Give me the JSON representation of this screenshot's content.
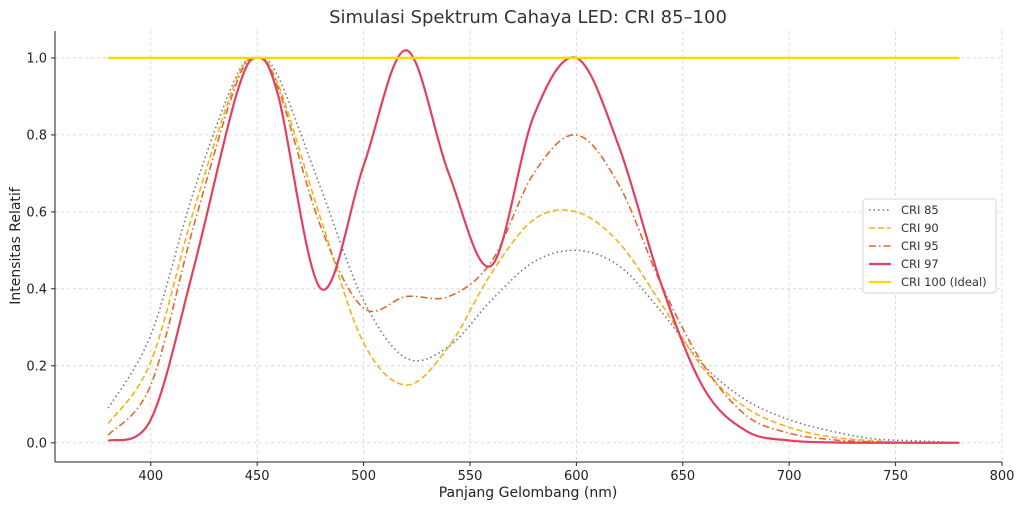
{
  "chart_data": {
    "type": "line",
    "title": "Simulasi Spektrum Cahaya LED: CRI 85–100",
    "xlabel": "Panjang Gelombang (nm)",
    "ylabel": "Intensitas Relatif",
    "xlim": [
      355,
      800
    ],
    "ylim": [
      -0.05,
      1.07
    ],
    "xticks": [
      400,
      450,
      500,
      550,
      600,
      650,
      700,
      750,
      800
    ],
    "yticks": [
      0.0,
      0.2,
      0.4,
      0.6,
      0.8,
      1.0
    ],
    "xtick_labels": [
      "400",
      "450",
      "500",
      "550",
      "600",
      "650",
      "700",
      "750",
      "800"
    ],
    "ytick_labels": [
      "0.0",
      "0.2",
      "0.4",
      "0.6",
      "0.8",
      "1.0"
    ],
    "grid": true,
    "legend_position": "right",
    "x": [
      380,
      400,
      420,
      440,
      450,
      460,
      480,
      500,
      520,
      540,
      560,
      580,
      600,
      620,
      640,
      660,
      680,
      700,
      720,
      740,
      760,
      780
    ],
    "series": [
      {
        "name": "CRI 85",
        "color": "#777777",
        "style": "dotted",
        "values": [
          0.09,
          0.28,
          0.65,
          0.95,
          1.0,
          0.95,
          0.66,
          0.37,
          0.22,
          0.25,
          0.37,
          0.47,
          0.5,
          0.46,
          0.34,
          0.2,
          0.11,
          0.06,
          0.03,
          0.01,
          0.005,
          0.0
        ]
      },
      {
        "name": "CRI 90",
        "color": "#f2b21a",
        "style": "dashed",
        "values": [
          0.05,
          0.21,
          0.6,
          0.94,
          1.0,
          0.93,
          0.58,
          0.26,
          0.15,
          0.25,
          0.44,
          0.58,
          0.6,
          0.52,
          0.36,
          0.19,
          0.09,
          0.04,
          0.015,
          0.005,
          0.0,
          0.0
        ]
      },
      {
        "name": "CRI 95",
        "color": "#e06a2e",
        "style": "dashdot",
        "values": [
          0.02,
          0.15,
          0.56,
          0.93,
          1.0,
          0.92,
          0.56,
          0.35,
          0.38,
          0.38,
          0.47,
          0.7,
          0.8,
          0.67,
          0.41,
          0.2,
          0.07,
          0.025,
          0.008,
          0.002,
          0.0,
          0.0
        ]
      },
      {
        "name": "CRI 97",
        "color": "#e3405f",
        "style": "solid",
        "values": [
          0.005,
          0.06,
          0.45,
          0.9,
          1.0,
          0.9,
          0.4,
          0.72,
          1.02,
          0.7,
          0.46,
          0.85,
          1.0,
          0.77,
          0.41,
          0.14,
          0.03,
          0.006,
          0.001,
          0.0,
          0.0,
          0.0
        ]
      },
      {
        "name": "CRI 100 (Ideal)",
        "color": "#ffd700",
        "style": "solid",
        "values": [
          1.0,
          1.0,
          1.0,
          1.0,
          1.0,
          1.0,
          1.0,
          1.0,
          1.0,
          1.0,
          1.0,
          1.0,
          1.0,
          1.0,
          1.0,
          1.0,
          1.0,
          1.0,
          1.0,
          1.0,
          1.0,
          1.0
        ]
      }
    ]
  }
}
